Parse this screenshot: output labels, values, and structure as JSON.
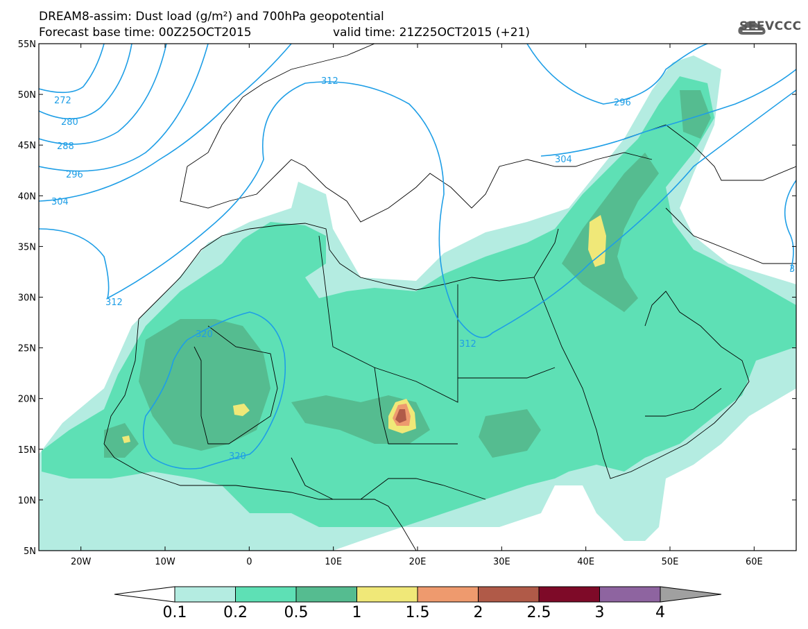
{
  "header": {
    "title_line1": "DREAM8-assim: Dust load (g/m²) and 700hPa geopotential",
    "title_line2": "Forecast base time: 00Z25OCT2015",
    "valid_time": "valid time: 21Z25OCT2015 (+21)",
    "logo_text": "SEEVCCC"
  },
  "map": {
    "lat_labels": [
      "55N",
      "50N",
      "45N",
      "40N",
      "35N",
      "30N",
      "25N",
      "20N",
      "15N",
      "10N",
      "5N"
    ],
    "lon_labels": [
      "20W",
      "10W",
      "0",
      "10E",
      "20E",
      "30E",
      "40E",
      "50E",
      "60E"
    ],
    "contour_labels": [
      "272",
      "280",
      "288",
      "296",
      "304",
      "312",
      "296",
      "304",
      "312",
      "320",
      "320",
      "312",
      "3"
    ]
  },
  "legend": {
    "labels": [
      "0.1",
      "0.2",
      "0.5",
      "1",
      "1.5",
      "2",
      "2.5",
      "3",
      "4"
    ],
    "colors": [
      "#b4ece1",
      "#5ee0b5",
      "#55bc90",
      "#f0e878",
      "#ee9a6e",
      "#b05a48",
      "#7e0a28",
      "#8e64a0"
    ],
    "under_color": "#ffffff",
    "over_color": "#a0a0a0"
  },
  "colors": {
    "contour": "#1e9ee6",
    "coast": "#000000"
  }
}
